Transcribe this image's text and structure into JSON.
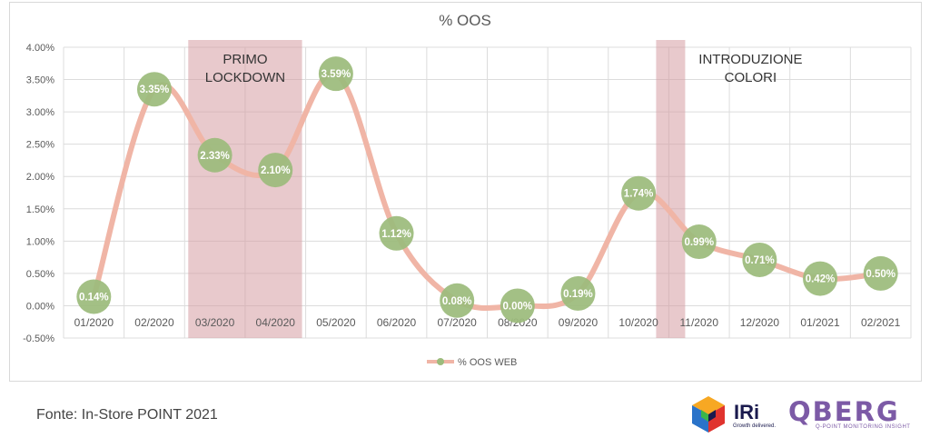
{
  "chart_data": {
    "type": "line",
    "title": "% OOS",
    "categories": [
      "01/2020",
      "02/2020",
      "03/2020",
      "04/2020",
      "05/2020",
      "06/2020",
      "07/2020",
      "08/2020",
      "09/2020",
      "10/2020",
      "11/2020",
      "12/2020",
      "01/2021",
      "02/2021"
    ],
    "series": [
      {
        "name": "% OOS WEB",
        "values": [
          0.14,
          3.35,
          2.33,
          2.1,
          3.59,
          1.12,
          0.08,
          0.0,
          0.19,
          1.74,
          0.99,
          0.71,
          0.42,
          0.5
        ],
        "data_labels": [
          "0.14%",
          "3.35%",
          "2.33%",
          "2.10%",
          "3.59%",
          "1.12%",
          "0.08%",
          "0.00%",
          "0.19%",
          "1.74%",
          "0.99%",
          "0.71%",
          "0.42%",
          "0.50%"
        ]
      }
    ],
    "ylim": [
      -0.5,
      4.0
    ],
    "y_ticks": [
      4.0,
      3.5,
      3.0,
      2.5,
      2.0,
      1.5,
      1.0,
      0.5,
      0.0,
      -0.5
    ],
    "y_tick_labels": [
      "4.00%",
      "3.50%",
      "3.00%",
      "2.50%",
      "2.00%",
      "1.50%",
      "1.00%",
      "0.50%",
      "0.00%",
      "-0.50%"
    ],
    "grid": true,
    "legend": "bottom",
    "annotations": [
      {
        "label_lines": [
          "PRIMO",
          "LOCKDOWN"
        ],
        "from": "03/2020",
        "to": "04/2020"
      },
      {
        "label_lines": [
          "INTRODUZIONE",
          "COLORI"
        ],
        "from": "11/2020",
        "to": "11/2020"
      }
    ],
    "colors": {
      "line": "#f0b5a6",
      "marker": "#9cbb7c",
      "band": "#d69ca2",
      "grid": "#dcdcdc"
    }
  },
  "source_note": "Fonte: In-Store POINT 2021",
  "logos": {
    "iri": {
      "name": "IRi",
      "tagline": "Growth delivered."
    },
    "qberg": {
      "name": "QBERG",
      "tagline": "Q-POINT MONITORING INSIGHT"
    }
  }
}
